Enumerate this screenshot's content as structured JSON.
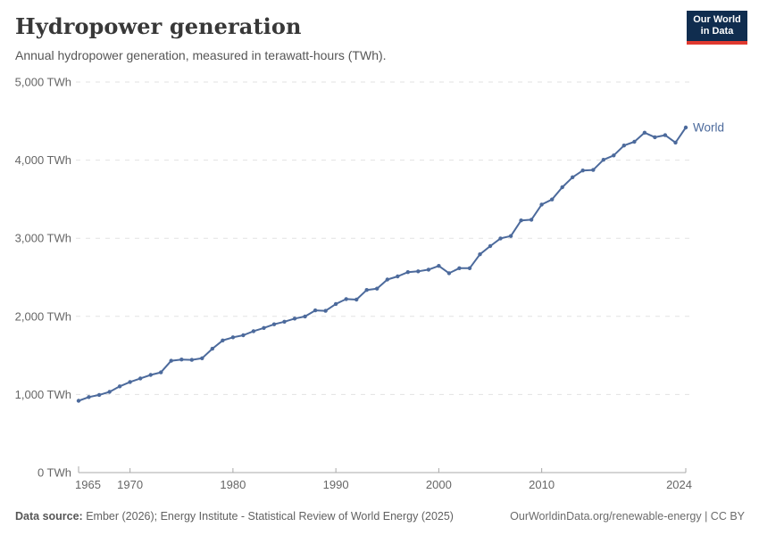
{
  "header": {
    "title": "Hydropower generation",
    "subtitle": "Annual hydropower generation, measured in terawatt-hours (TWh)."
  },
  "logo": {
    "line1": "Our World",
    "line2": "in Data"
  },
  "footer": {
    "source_label": "Data source:",
    "source_text": " Ember (2026); Energy Institute - Statistical Review of World Energy (2025)",
    "rights": "OurWorldinData.org/renewable-energy | CC BY"
  },
  "colors": {
    "line": "#4c6a9c",
    "series_label": "#4c6a9c",
    "grid": "#e2e2e2",
    "axis": "#a8a8a8",
    "tick_label": "#666666",
    "logo_bg": "#102d4f",
    "logo_red": "#e0392f"
  },
  "chart_data": {
    "type": "line",
    "title": "Hydropower generation",
    "unit": "TWh",
    "grid": "horizontal dashed",
    "legend": "end-of-line label",
    "ylim": [
      0,
      5000
    ],
    "yticks": [
      0,
      1000,
      2000,
      3000,
      4000,
      5000
    ],
    "ytick_labels": [
      "0 TWh",
      "1,000 TWh",
      "2,000 TWh",
      "3,000 TWh",
      "4,000 TWh",
      "5,000 TWh"
    ],
    "xticks": [
      1965,
      1970,
      1980,
      1990,
      2000,
      2010,
      2024
    ],
    "x": [
      1965,
      1966,
      1967,
      1968,
      1969,
      1970,
      1971,
      1972,
      1973,
      1974,
      1975,
      1976,
      1977,
      1978,
      1979,
      1980,
      1981,
      1982,
      1983,
      1984,
      1985,
      1986,
      1987,
      1988,
      1989,
      1990,
      1991,
      1992,
      1993,
      1994,
      1995,
      1996,
      1997,
      1998,
      1999,
      2000,
      2001,
      2002,
      2003,
      2004,
      2005,
      2006,
      2007,
      2008,
      2009,
      2010,
      2011,
      2012,
      2013,
      2014,
      2015,
      2016,
      2017,
      2018,
      2019,
      2020,
      2021,
      2022,
      2023,
      2024
    ],
    "series": [
      {
        "name": "World",
        "values": [
          919,
          967,
          994,
          1033,
          1104,
          1160,
          1206,
          1250,
          1283,
          1431,
          1448,
          1443,
          1464,
          1586,
          1692,
          1732,
          1758,
          1811,
          1852,
          1898,
          1932,
          1972,
          1999,
          2077,
          2071,
          2159,
          2221,
          2215,
          2338,
          2355,
          2472,
          2511,
          2566,
          2577,
          2598,
          2646,
          2552,
          2617,
          2616,
          2794,
          2900,
          2998,
          3028,
          3228,
          3238,
          3431,
          3497,
          3653,
          3781,
          3868,
          3875,
          4005,
          4060,
          4187,
          4235,
          4352,
          4293,
          4320,
          4225,
          4418
        ]
      }
    ]
  }
}
